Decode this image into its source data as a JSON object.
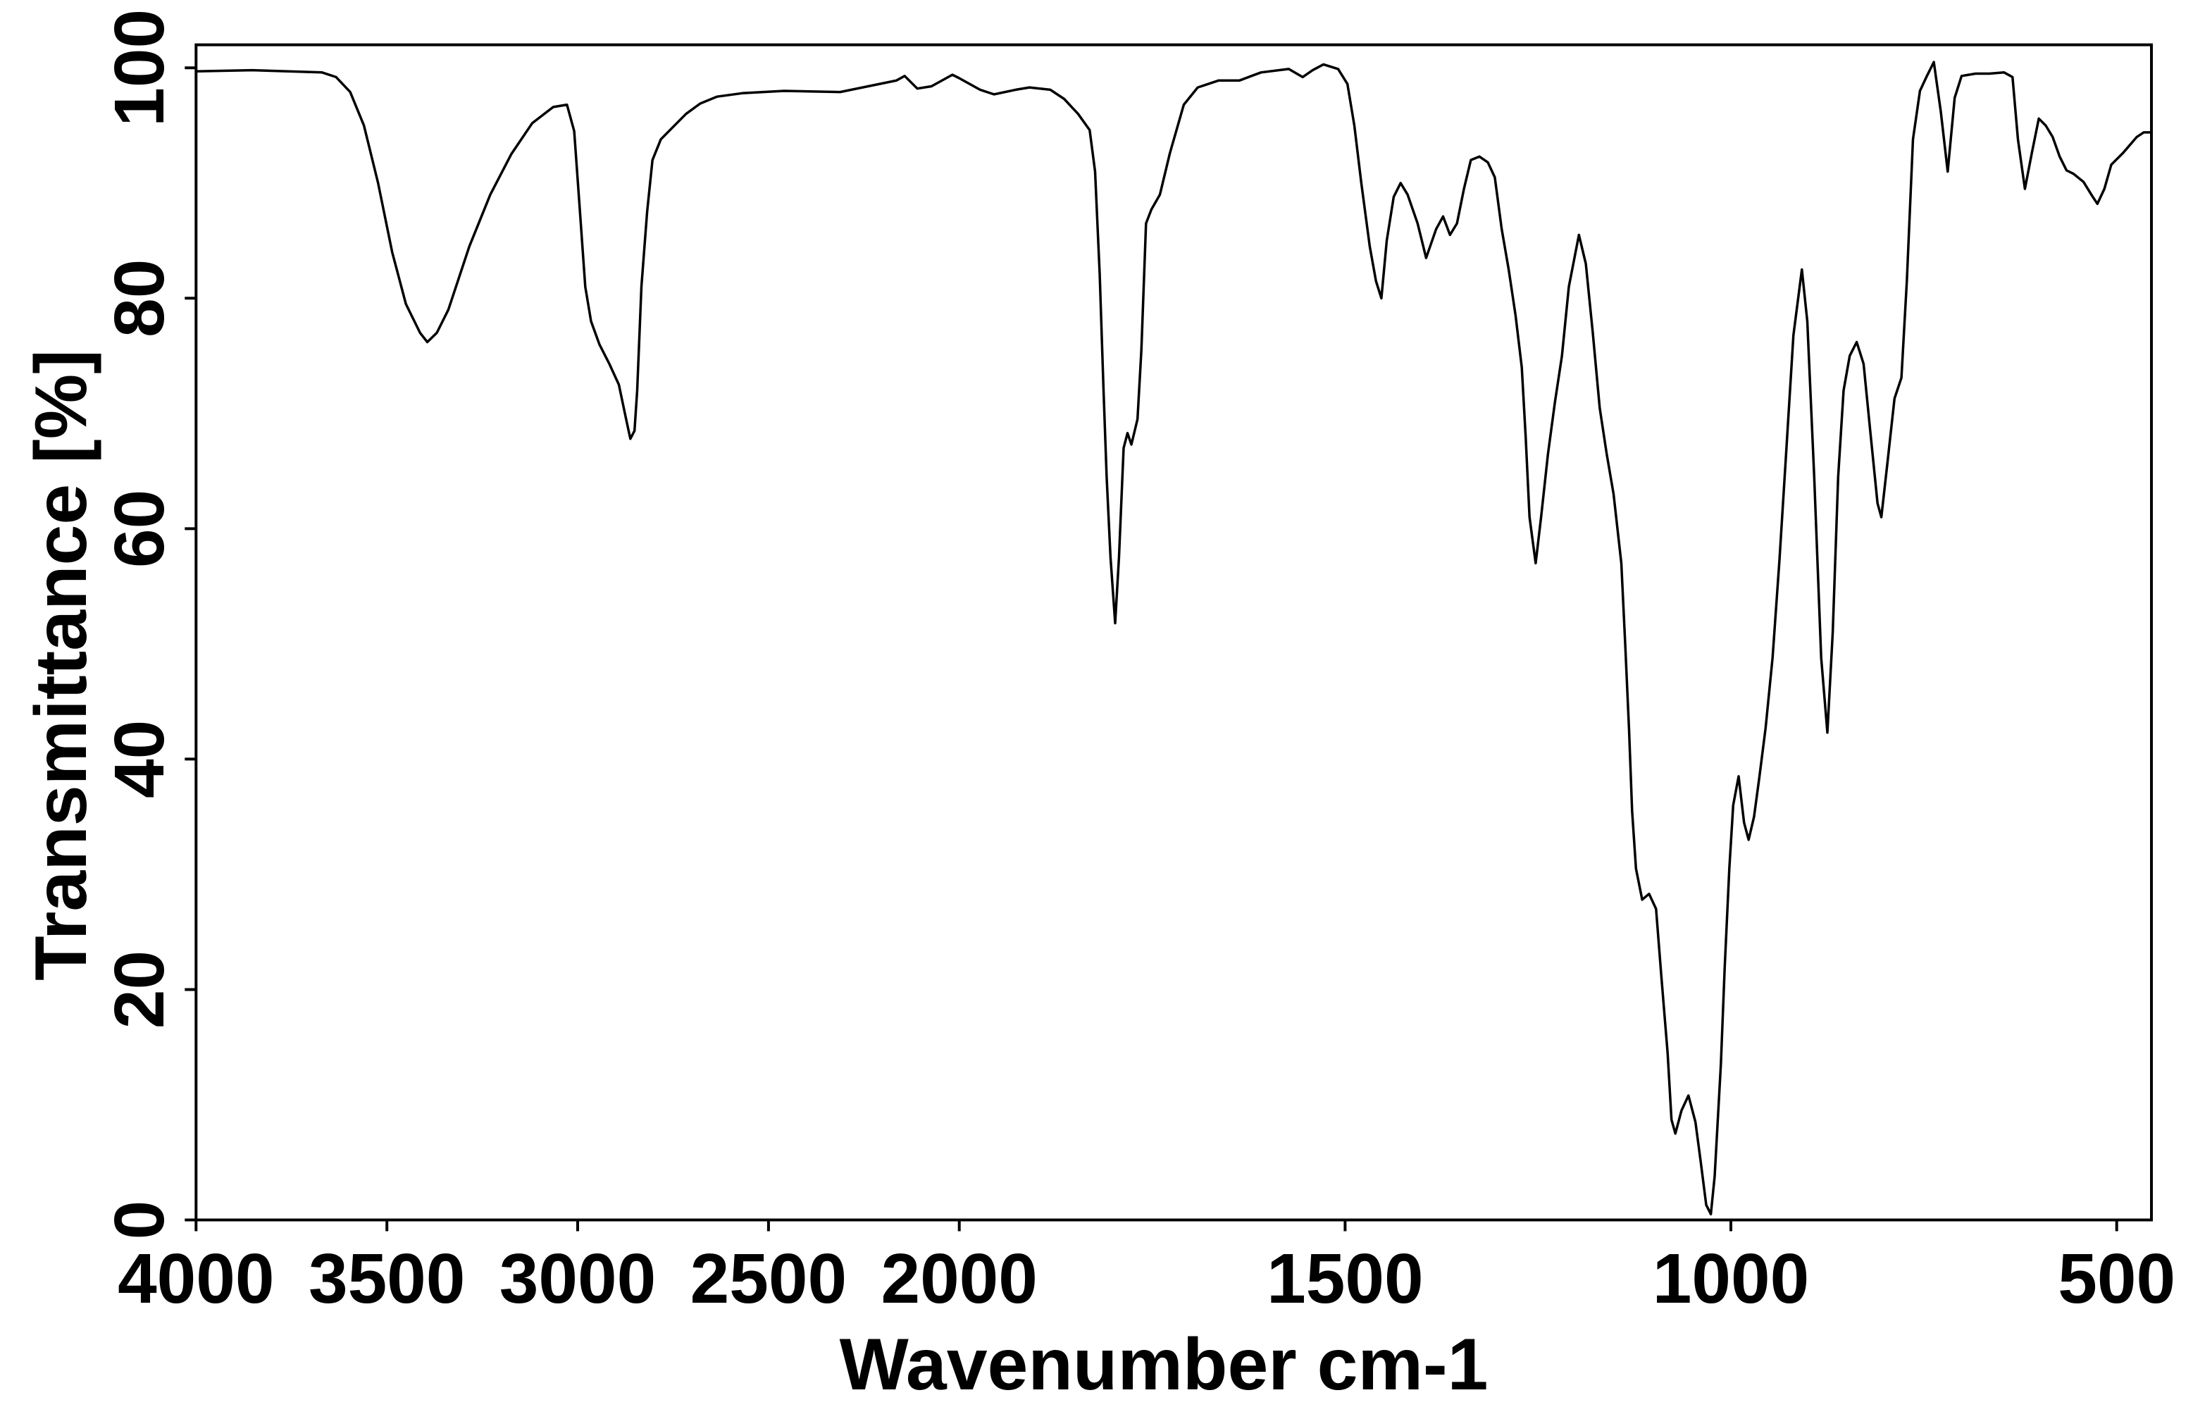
{
  "chart_data": {
    "type": "line",
    "title": "",
    "xlabel": "Wavenumber cm-1",
    "ylabel": "Transmittance [%]",
    "xlim": [
      4000,
      455
    ],
    "ylim": [
      0,
      102
    ],
    "x_reversed": true,
    "x_axis_scale": {
      "break_at": 2000,
      "expansion_below": 2
    },
    "x_ticks": [
      4000,
      3500,
      3000,
      2500,
      2000,
      1500,
      1000,
      500
    ],
    "y_ticks": [
      0,
      20,
      40,
      60,
      80,
      100
    ],
    "grid": false,
    "legend": "none",
    "background_color": "#ffffff",
    "series": [
      {
        "color": "#000000",
        "points": [
          [
            4000,
            99.7
          ],
          [
            3853,
            99.8
          ],
          [
            3670,
            99.6
          ],
          [
            3633,
            99.2
          ],
          [
            3596,
            97.9
          ],
          [
            3560,
            95.0
          ],
          [
            3523,
            90.0
          ],
          [
            3486,
            84.0
          ],
          [
            3450,
            79.5
          ],
          [
            3413,
            77.0
          ],
          [
            3394,
            76.2
          ],
          [
            3369,
            77.0
          ],
          [
            3339,
            79.0
          ],
          [
            3284,
            84.5
          ],
          [
            3229,
            89.0
          ],
          [
            3174,
            92.5
          ],
          [
            3119,
            95.2
          ],
          [
            3064,
            96.6
          ],
          [
            3028,
            96.8
          ],
          [
            3009,
            94.5
          ],
          [
            2995,
            88.0
          ],
          [
            2980,
            81.0
          ],
          [
            2965,
            78.0
          ],
          [
            2943,
            76.0
          ],
          [
            2917,
            74.3
          ],
          [
            2892,
            72.5
          ],
          [
            2873,
            69.5
          ],
          [
            2862,
            67.8
          ],
          [
            2851,
            68.5
          ],
          [
            2844,
            72.0
          ],
          [
            2833,
            81.0
          ],
          [
            2818,
            87.5
          ],
          [
            2804,
            92.0
          ],
          [
            2782,
            93.8
          ],
          [
            2752,
            94.8
          ],
          [
            2716,
            96.0
          ],
          [
            2679,
            96.9
          ],
          [
            2635,
            97.5
          ],
          [
            2569,
            97.8
          ],
          [
            2459,
            98.0
          ],
          [
            2312,
            97.9
          ],
          [
            2239,
            98.4
          ],
          [
            2165,
            98.9
          ],
          [
            2143,
            99.3
          ],
          [
            2110,
            98.2
          ],
          [
            2073,
            98.4
          ],
          [
            2018,
            99.4
          ],
          [
            2000,
            99.1
          ],
          [
            1973,
            98.1
          ],
          [
            1955,
            97.7
          ],
          [
            1927,
            98.1
          ],
          [
            1909,
            98.3
          ],
          [
            1882,
            98.1
          ],
          [
            1864,
            97.3
          ],
          [
            1846,
            96.0
          ],
          [
            1831,
            94.6
          ],
          [
            1824,
            91.0
          ],
          [
            1818,
            82.0
          ],
          [
            1813,
            72.0
          ],
          [
            1809,
            64.5
          ],
          [
            1804,
            57.5
          ],
          [
            1798,
            51.8
          ],
          [
            1793,
            57.5
          ],
          [
            1787,
            67.0
          ],
          [
            1782,
            68.3
          ],
          [
            1777,
            67.3
          ],
          [
            1769,
            69.5
          ],
          [
            1764,
            75.5
          ],
          [
            1758,
            86.5
          ],
          [
            1751,
            87.7
          ],
          [
            1740,
            89.0
          ],
          [
            1727,
            92.6
          ],
          [
            1709,
            96.8
          ],
          [
            1691,
            98.3
          ],
          [
            1664,
            98.9
          ],
          [
            1637,
            98.9
          ],
          [
            1609,
            99.6
          ],
          [
            1573,
            99.9
          ],
          [
            1555,
            99.2
          ],
          [
            1542,
            99.8
          ],
          [
            1528,
            100.3
          ],
          [
            1509,
            99.9
          ],
          [
            1497,
            98.6
          ],
          [
            1488,
            95.0
          ],
          [
            1479,
            90.0
          ],
          [
            1468,
            84.5
          ],
          [
            1460,
            81.5
          ],
          [
            1453,
            80.0
          ],
          [
            1446,
            85.0
          ],
          [
            1437,
            88.8
          ],
          [
            1428,
            90.0
          ],
          [
            1419,
            89.0
          ],
          [
            1406,
            86.5
          ],
          [
            1395,
            83.5
          ],
          [
            1382,
            86.0
          ],
          [
            1373,
            87.1
          ],
          [
            1364,
            85.5
          ],
          [
            1355,
            86.5
          ],
          [
            1346,
            89.5
          ],
          [
            1337,
            92.0
          ],
          [
            1326,
            92.3
          ],
          [
            1315,
            91.8
          ],
          [
            1306,
            90.5
          ],
          [
            1297,
            86.0
          ],
          [
            1288,
            82.5
          ],
          [
            1279,
            78.5
          ],
          [
            1271,
            74.0
          ],
          [
            1266,
            68.0
          ],
          [
            1261,
            61.0
          ],
          [
            1253,
            57.0
          ],
          [
            1246,
            61.0
          ],
          [
            1237,
            66.5
          ],
          [
            1228,
            71.0
          ],
          [
            1219,
            75.0
          ],
          [
            1210,
            81.0
          ],
          [
            1197,
            85.5
          ],
          [
            1188,
            83.0
          ],
          [
            1179,
            77.0
          ],
          [
            1170,
            70.5
          ],
          [
            1161,
            66.5
          ],
          [
            1152,
            63.0
          ],
          [
            1142,
            57.0
          ],
          [
            1137,
            50.0
          ],
          [
            1132,
            42.5
          ],
          [
            1128,
            35.5
          ],
          [
            1123,
            30.5
          ],
          [
            1115,
            27.8
          ],
          [
            1106,
            28.3
          ],
          [
            1097,
            27.0
          ],
          [
            1090,
            21.0
          ],
          [
            1082,
            14.5
          ],
          [
            1077,
            8.7
          ],
          [
            1072,
            7.5
          ],
          [
            1064,
            9.5
          ],
          [
            1055,
            10.8
          ],
          [
            1046,
            8.5
          ],
          [
            1039,
            5.0
          ],
          [
            1032,
            1.3
          ],
          [
            1026,
            0.5
          ],
          [
            1021,
            3.8
          ],
          [
            1013,
            13.5
          ],
          [
            1008,
            22.0
          ],
          [
            1002,
            30.5
          ],
          [
            997,
            36.0
          ],
          [
            990,
            38.5
          ],
          [
            983,
            34.5
          ],
          [
            977,
            33.0
          ],
          [
            970,
            35.0
          ],
          [
            963,
            38.5
          ],
          [
            955,
            42.7
          ],
          [
            946,
            48.8
          ],
          [
            937,
            57.3
          ],
          [
            928,
            67.0
          ],
          [
            919,
            76.8
          ],
          [
            908,
            82.5
          ],
          [
            901,
            78.0
          ],
          [
            892,
            64.5
          ],
          [
            883,
            48.8
          ],
          [
            875,
            42.3
          ],
          [
            868,
            51.0
          ],
          [
            861,
            64.5
          ],
          [
            854,
            72.0
          ],
          [
            846,
            75.0
          ],
          [
            837,
            76.2
          ],
          [
            828,
            74.3
          ],
          [
            819,
            68.2
          ],
          [
            810,
            62.2
          ],
          [
            805,
            61.0
          ],
          [
            797,
            65.8
          ],
          [
            788,
            71.3
          ],
          [
            779,
            73.1
          ],
          [
            772,
            81.5
          ],
          [
            764,
            93.8
          ],
          [
            755,
            98.0
          ],
          [
            746,
            99.3
          ],
          [
            737,
            100.5
          ],
          [
            728,
            96.2
          ],
          [
            719,
            91.0
          ],
          [
            710,
            97.4
          ],
          [
            701,
            99.3
          ],
          [
            683,
            99.5
          ],
          [
            665,
            99.5
          ],
          [
            646,
            99.6
          ],
          [
            635,
            99.2
          ],
          [
            628,
            93.8
          ],
          [
            619,
            89.5
          ],
          [
            610,
            92.6
          ],
          [
            601,
            95.6
          ],
          [
            592,
            95.0
          ],
          [
            583,
            94.0
          ],
          [
            574,
            92.3
          ],
          [
            565,
            91.1
          ],
          [
            556,
            90.8
          ],
          [
            543,
            90.1
          ],
          [
            532,
            88.9
          ],
          [
            525,
            88.2
          ],
          [
            516,
            89.5
          ],
          [
            507,
            91.6
          ],
          [
            492,
            92.6
          ],
          [
            474,
            94.0
          ],
          [
            465,
            94.4
          ],
          [
            455,
            94.4
          ]
        ]
      }
    ]
  }
}
